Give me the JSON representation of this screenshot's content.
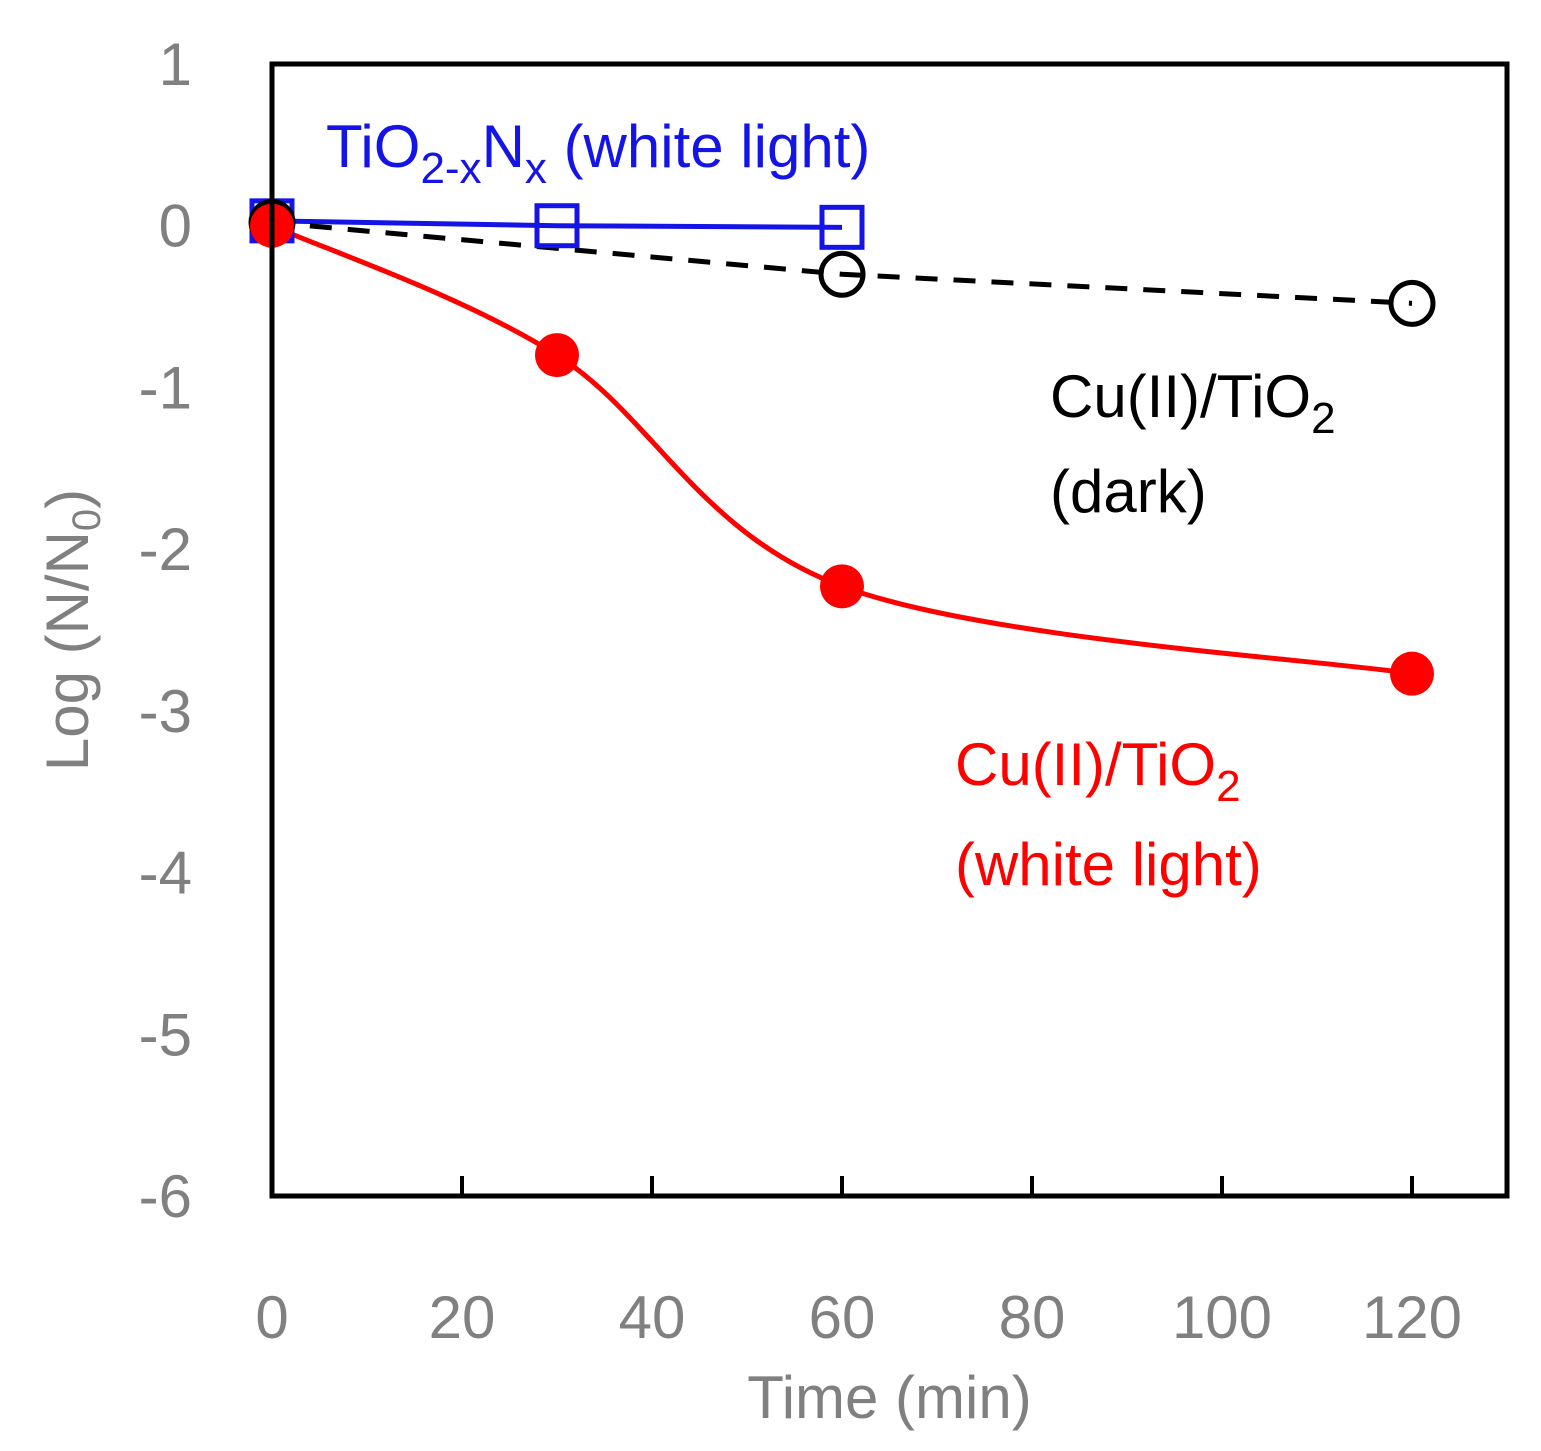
{
  "chart_data": {
    "type": "line",
    "title": "",
    "xlabel": "Time (min)",
    "ylabel": {
      "main": "Log (N/N",
      "sub": "0",
      "close": ")"
    },
    "xlim": [
      0,
      130
    ],
    "ylim": [
      -6,
      1
    ],
    "xticks": [
      0,
      20,
      40,
      60,
      80,
      100,
      120
    ],
    "yticks": [
      1,
      0,
      -1,
      -2,
      -3,
      -4,
      -5,
      -6
    ],
    "grid": false,
    "series": [
      {
        "name": "TiO2-xNx (white light)",
        "label_parts": [
          {
            "text": "TiO",
            "sub": false
          },
          {
            "text": "2-x",
            "sub": true
          },
          {
            "text": "N",
            "sub": false
          },
          {
            "text": "x",
            "sub": true
          },
          {
            "text": " (white light)",
            "sub": false
          }
        ],
        "color": "#1414e6",
        "marker": "open-square",
        "line": "solid",
        "x": [
          0,
          30,
          60
        ],
        "y": [
          0.03,
          0.0,
          -0.01
        ]
      },
      {
        "name": "Cu(II)/TiO2 (dark)",
        "label_lines": [
          [
            {
              "text": "Cu(II)/TiO",
              "sub": false
            },
            {
              "text": "2",
              "sub": true
            }
          ],
          [
            {
              "text": "(dark)",
              "sub": false
            }
          ]
        ],
        "color": "#000000",
        "marker": "open-circle",
        "line": "dashed",
        "x": [
          0,
          60,
          120
        ],
        "y": [
          0.02,
          -0.3,
          -0.48
        ]
      },
      {
        "name": "Cu(II)/TiO2 (white light)",
        "label_lines": [
          [
            {
              "text": "Cu(II)/TiO",
              "sub": false
            },
            {
              "text": "2",
              "sub": true
            }
          ],
          [
            {
              "text": "(white light)",
              "sub": false
            }
          ]
        ],
        "color": "#ff0000",
        "marker": "filled-circle",
        "line": "smooth",
        "x": [
          0,
          30,
          60,
          120
        ],
        "y": [
          0.0,
          -0.8,
          -2.23,
          -2.77
        ]
      }
    ]
  }
}
